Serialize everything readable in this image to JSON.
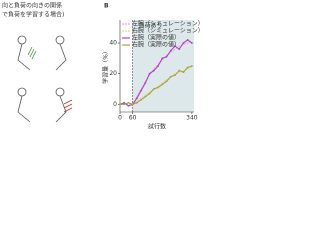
{
  "left_panel": {
    "line1": "向と負荷の向きの関係",
    "line2": "で負荷を学習する場合)"
  },
  "chart_data": {
    "type": "line",
    "panel_label": "B",
    "annotation": "負荷あり",
    "xlabel": "試行数",
    "ylabel": "学習量（%）",
    "x": [
      0,
      20,
      40,
      60,
      80,
      100,
      120,
      140,
      160,
      180,
      200,
      220,
      240,
      260,
      280,
      300,
      320,
      340
    ],
    "xlim": [
      0,
      350
    ],
    "xticks": [
      0,
      60,
      340
    ],
    "ylim": [
      -5,
      55
    ],
    "yticks": [
      0,
      20,
      40
    ],
    "shade_from": 60,
    "series": [
      {
        "name": "左腕（シミュレーション）",
        "color": "#f0a0d8",
        "dashed": true,
        "values": [
          0,
          0,
          0,
          0,
          5,
          10,
          15,
          19,
          23,
          26,
          29,
          32,
          34,
          36,
          38,
          39,
          40,
          41
        ]
      },
      {
        "name": "右腕（シミュレーション）",
        "color": "#e0d890",
        "dashed": true,
        "values": [
          0,
          0,
          0,
          0,
          2,
          4,
          6,
          8,
          10,
          12,
          14,
          16,
          18,
          20,
          21,
          22,
          23,
          24
        ]
      },
      {
        "name": "左腕（実際の値）",
        "color": "#b040c8",
        "dashed": false,
        "values": [
          0,
          1,
          -1,
          0,
          4,
          9,
          14,
          20,
          22,
          25,
          30,
          31,
          35,
          38,
          36,
          40,
          42,
          40
        ]
      },
      {
        "name": "右腕（実際の値）",
        "color": "#a8a040",
        "dashed": false,
        "values": [
          0,
          0,
          1,
          0,
          1,
          3,
          5,
          7,
          10,
          11,
          13,
          15,
          18,
          19,
          22,
          21,
          24,
          25
        ]
      }
    ]
  }
}
